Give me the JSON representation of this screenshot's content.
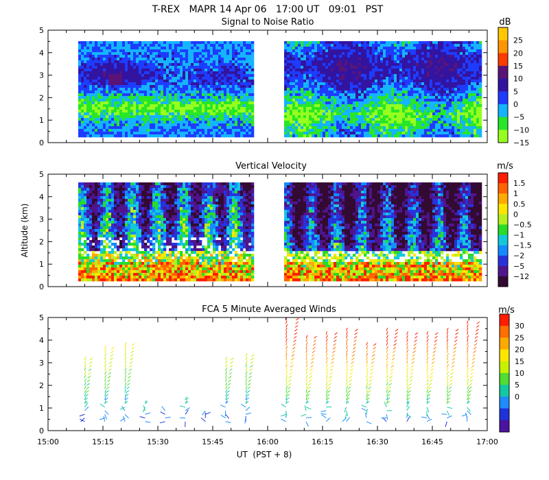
{
  "figure": {
    "title": "T-REX   MAPR 14 Apr 06   17:00 UT   09:01   PST",
    "xlabel": "UT  (PST + 8)",
    "ylabel": "Altitude (km)"
  },
  "chart_data": [
    {
      "type": "heatmap",
      "title": "Signal to Noise Ratio",
      "ylim": [
        0,
        5
      ],
      "yticks": [
        "0",
        "1",
        "2",
        "3",
        "4",
        "5"
      ],
      "xlim_minutes": [
        0,
        120
      ],
      "data_gap_minutes": [
        56,
        64
      ],
      "colorbar": {
        "unit": "dB",
        "labels": [
          "25",
          "20",
          "15",
          "10",
          "5",
          "0",
          "−5",
          "−10",
          "−15"
        ],
        "colors": [
          "#ffc800",
          "#ff9600",
          "#ff3c00",
          "#5a1478",
          "#3214a0",
          "#1e3cff",
          "#14b4ff",
          "#28e628",
          "#96ff1e"
        ]
      }
    },
    {
      "type": "heatmap",
      "title": "Vertical Velocity",
      "ylim": [
        0,
        5
      ],
      "yticks": [
        "0",
        "1",
        "2",
        "3",
        "4",
        "5"
      ],
      "xlim_minutes": [
        0,
        120
      ],
      "data_gap_minutes": [
        56,
        64
      ],
      "colorbar": {
        "unit": "m/s",
        "labels": [
          "1.5",
          "1",
          "0.5",
          "0",
          "−0.5",
          "−1",
          "−1.5",
          "−2",
          "−5",
          "−12"
        ],
        "colors": [
          "#ff1e00",
          "#ff6400",
          "#ffaa00",
          "#ffe600",
          "#b4f01e",
          "#28dc28",
          "#14c8dc",
          "#148cff",
          "#2832dc",
          "#50148c",
          "#320a32"
        ]
      }
    },
    {
      "type": "scatter",
      "title": "FCA 5 Minute Averaged Winds",
      "ylim": [
        0,
        5
      ],
      "yticks": [
        "0",
        "1",
        "2",
        "3",
        "4",
        "5"
      ],
      "xlim_minutes": [
        0,
        120
      ],
      "xticks": [
        "15:00",
        "15:15",
        "15:30",
        "15:45",
        "16:00",
        "16:15",
        "16:30",
        "16:45",
        "17:00"
      ],
      "colorbar": {
        "unit": "m/s",
        "labels": [
          "30",
          "25",
          "20",
          "15",
          "10",
          "5",
          "0"
        ],
        "colors": [
          "#ff1e00",
          "#ff6e00",
          "#ffaa00",
          "#ffe600",
          "#c8f000",
          "#50dc32",
          "#14c8a0",
          "#1e8cff",
          "#1e32dc",
          "#4b14a0"
        ]
      }
    }
  ]
}
